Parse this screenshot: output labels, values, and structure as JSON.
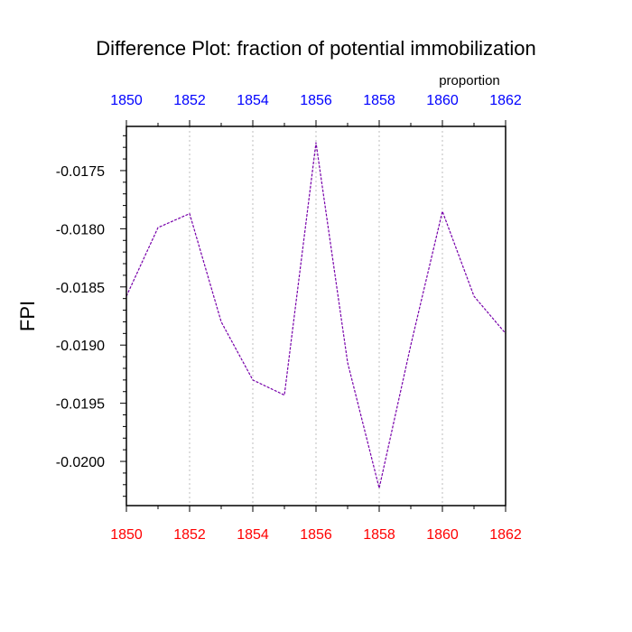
{
  "chart_data": {
    "type": "line",
    "title": "Difference Plot: fraction of potential immobilization",
    "units_label": "proportion",
    "ylabel": "FPI",
    "xlabel": "",
    "xlim": [
      1850,
      1862
    ],
    "ylim": [
      -0.02038,
      -0.01712
    ],
    "x_ticks": [
      "1850",
      "1852",
      "1854",
      "1856",
      "1858",
      "1860",
      "1862"
    ],
    "y_ticks": [
      "-0.0175",
      "-0.0180",
      "-0.0185",
      "-0.0190",
      "-0.0195",
      "-0.0200"
    ],
    "x_minor_step": 1,
    "y_minor_step": 0.0001,
    "grid": "vertical dotted at major x ticks",
    "bottom_tick_color": "#ff0000",
    "top_tick_color": "#0000ff",
    "series": [
      {
        "color": "#7700aa",
        "x": [
          1850,
          1851,
          1852,
          1853,
          1854,
          1855,
          1856,
          1857,
          1858,
          1859,
          1860,
          1861,
          1862
        ],
        "values": [
          -0.01858,
          -0.01799,
          -0.01787,
          -0.0188,
          -0.0193,
          -0.01943,
          -0.01726,
          -0.01915,
          -0.02023,
          -0.019,
          -0.01785,
          -0.01858,
          -0.0189
        ]
      }
    ]
  }
}
